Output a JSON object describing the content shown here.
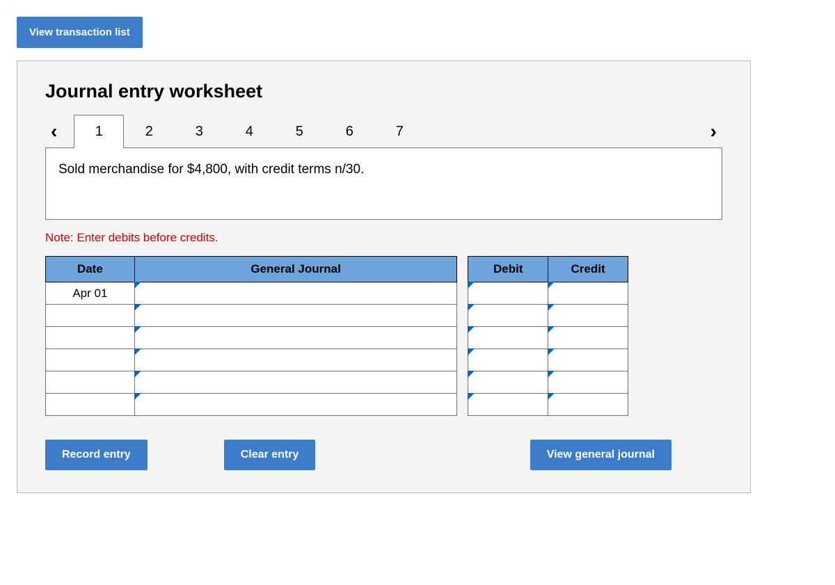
{
  "top_button_label": "View transaction list",
  "panel": {
    "title": "Journal entry worksheet",
    "tabs": [
      "1",
      "2",
      "3",
      "4",
      "5",
      "6",
      "7"
    ],
    "active_tab_index": 0,
    "description": "Sold merchandise for $4,800, with credit terms n/30.",
    "note": "Note: Enter debits before credits."
  },
  "table": {
    "headers": {
      "date": "Date",
      "general_journal": "General Journal",
      "debit": "Debit",
      "credit": "Credit"
    },
    "rows": [
      {
        "date": "Apr 01",
        "general_journal": "",
        "debit": "",
        "credit": ""
      },
      {
        "date": "",
        "general_journal": "",
        "debit": "",
        "credit": ""
      },
      {
        "date": "",
        "general_journal": "",
        "debit": "",
        "credit": ""
      },
      {
        "date": "",
        "general_journal": "",
        "debit": "",
        "credit": ""
      },
      {
        "date": "",
        "general_journal": "",
        "debit": "",
        "credit": ""
      },
      {
        "date": "",
        "general_journal": "",
        "debit": "",
        "credit": ""
      }
    ],
    "header_bg": "#6ca4db",
    "marker_color": "#0b62c4"
  },
  "actions": {
    "record": "Record entry",
    "clear": "Clear entry",
    "view": "View general journal"
  },
  "colors": {
    "button_bg": "#3d7cc9",
    "panel_bg": "#f4f4f4",
    "note_color": "#d40000"
  }
}
